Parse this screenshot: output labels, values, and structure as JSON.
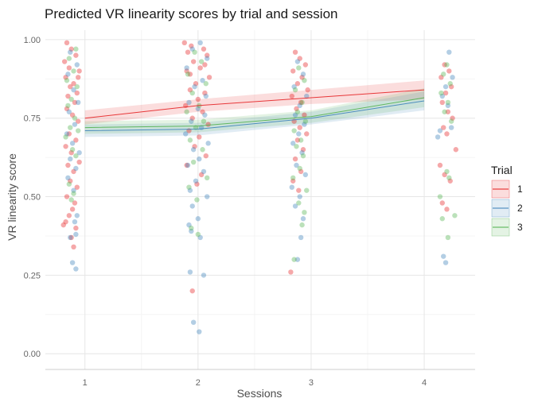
{
  "chart_data": {
    "type": "scatter",
    "title": "Predicted VR linearity scores by trial and session",
    "xlabel": "Sessions",
    "ylabel": "VR linearity score",
    "x_categories": [
      "1",
      "2",
      "3",
      "4"
    ],
    "x_range": [
      0.65,
      4.45
    ],
    "y_range": [
      -0.05,
      1.03
    ],
    "y_ticks": [
      0.0,
      0.25,
      0.5,
      0.75,
      1.0
    ],
    "y_tick_labels": [
      "0.00",
      "0.25",
      "0.50",
      "0.75",
      "1.00"
    ],
    "grid": true,
    "legend": {
      "title": "Trial",
      "placement": "right",
      "entries": [
        "1",
        "2",
        "3"
      ]
    },
    "colors": {
      "1": "#e41a1c",
      "2": "#377eb8",
      "3": "#4daf4a"
    },
    "series": [
      {
        "name": "1",
        "color": "#e41a1c",
        "fit": [
          {
            "session": 1,
            "estimate": 0.75,
            "lower": 0.73,
            "upper": 0.775
          },
          {
            "session": 2,
            "estimate": 0.79,
            "lower": 0.77,
            "upper": 0.81
          },
          {
            "session": 3,
            "estimate": 0.815,
            "lower": 0.795,
            "upper": 0.84
          },
          {
            "session": 4,
            "estimate": 0.84,
            "lower": 0.81,
            "upper": 0.87
          }
        ],
        "points": [
          {
            "x": 0.84,
            "y": 0.99
          },
          {
            "x": 0.88,
            "y": 0.97
          },
          {
            "x": 0.92,
            "y": 0.95
          },
          {
            "x": 0.82,
            "y": 0.93
          },
          {
            "x": 0.86,
            "y": 0.91
          },
          {
            "x": 0.95,
            "y": 0.9
          },
          {
            "x": 0.83,
            "y": 0.88
          },
          {
            "x": 0.9,
            "y": 0.86
          },
          {
            "x": 0.87,
            "y": 0.85
          },
          {
            "x": 0.93,
            "y": 0.83
          },
          {
            "x": 0.85,
            "y": 0.82
          },
          {
            "x": 0.91,
            "y": 0.8
          },
          {
            "x": 0.84,
            "y": 0.78
          },
          {
            "x": 0.89,
            "y": 0.76
          },
          {
            "x": 0.94,
            "y": 0.74
          },
          {
            "x": 0.86,
            "y": 0.7
          },
          {
            "x": 0.92,
            "y": 0.68
          },
          {
            "x": 0.83,
            "y": 0.66
          },
          {
            "x": 0.88,
            "y": 0.64
          },
          {
            "x": 0.95,
            "y": 0.61
          },
          {
            "x": 0.85,
            "y": 0.6
          },
          {
            "x": 0.9,
            "y": 0.58
          },
          {
            "x": 0.87,
            "y": 0.55
          },
          {
            "x": 0.93,
            "y": 0.53
          },
          {
            "x": 0.84,
            "y": 0.5
          },
          {
            "x": 0.91,
            "y": 0.48
          },
          {
            "x": 0.89,
            "y": 0.46
          },
          {
            "x": 0.86,
            "y": 0.44
          },
          {
            "x": 0.83,
            "y": 0.42
          },
          {
            "x": 0.81,
            "y": 0.41
          },
          {
            "x": 0.92,
            "y": 0.4
          },
          {
            "x": 0.88,
            "y": 0.37
          },
          {
            "x": 0.9,
            "y": 0.34
          },
          {
            "x": 0.94,
            "y": 0.88
          },
          {
            "x": 1.88,
            "y": 0.99
          },
          {
            "x": 1.94,
            "y": 0.98
          },
          {
            "x": 2.05,
            "y": 0.97
          },
          {
            "x": 1.91,
            "y": 0.96
          },
          {
            "x": 2.08,
            "y": 0.95
          },
          {
            "x": 1.96,
            "y": 0.93
          },
          {
            "x": 2.02,
            "y": 0.91
          },
          {
            "x": 1.9,
            "y": 0.9
          },
          {
            "x": 2.1,
            "y": 0.88
          },
          {
            "x": 1.98,
            "y": 0.86
          },
          {
            "x": 1.93,
            "y": 0.84
          },
          {
            "x": 2.06,
            "y": 0.83
          },
          {
            "x": 2.0,
            "y": 0.81
          },
          {
            "x": 1.89,
            "y": 0.79
          },
          {
            "x": 2.04,
            "y": 0.77
          },
          {
            "x": 1.95,
            "y": 0.75
          },
          {
            "x": 2.09,
            "y": 0.73
          },
          {
            "x": 1.92,
            "y": 0.71
          },
          {
            "x": 2.01,
            "y": 0.69
          },
          {
            "x": 1.97,
            "y": 0.66
          },
          {
            "x": 2.07,
            "y": 0.63
          },
          {
            "x": 1.9,
            "y": 0.6
          },
          {
            "x": 2.03,
            "y": 0.57
          },
          {
            "x": 1.99,
            "y": 0.54
          },
          {
            "x": 1.95,
            "y": 0.2
          },
          {
            "x": 2.06,
            "y": 0.92
          },
          {
            "x": 1.93,
            "y": 0.89
          },
          {
            "x": 2.86,
            "y": 0.96
          },
          {
            "x": 2.9,
            "y": 0.94
          },
          {
            "x": 2.95,
            "y": 0.92
          },
          {
            "x": 2.84,
            "y": 0.9
          },
          {
            "x": 2.92,
            "y": 0.88
          },
          {
            "x": 2.88,
            "y": 0.86
          },
          {
            "x": 2.97,
            "y": 0.84
          },
          {
            "x": 2.83,
            "y": 0.82
          },
          {
            "x": 2.91,
            "y": 0.8
          },
          {
            "x": 2.87,
            "y": 0.78
          },
          {
            "x": 2.94,
            "y": 0.76
          },
          {
            "x": 2.85,
            "y": 0.74
          },
          {
            "x": 2.9,
            "y": 0.72
          },
          {
            "x": 2.96,
            "y": 0.7
          },
          {
            "x": 2.88,
            "y": 0.68
          },
          {
            "x": 2.93,
            "y": 0.65
          },
          {
            "x": 2.86,
            "y": 0.62
          },
          {
            "x": 2.91,
            "y": 0.58
          },
          {
            "x": 2.84,
            "y": 0.55
          },
          {
            "x": 2.89,
            "y": 0.52
          },
          {
            "x": 2.82,
            "y": 0.26
          },
          {
            "x": 4.18,
            "y": 0.92
          },
          {
            "x": 4.22,
            "y": 0.9
          },
          {
            "x": 4.15,
            "y": 0.88
          },
          {
            "x": 4.24,
            "y": 0.85
          },
          {
            "x": 4.19,
            "y": 0.83
          },
          {
            "x": 4.16,
            "y": 0.8
          },
          {
            "x": 4.21,
            "y": 0.77
          },
          {
            "x": 4.25,
            "y": 0.75
          },
          {
            "x": 4.17,
            "y": 0.72
          },
          {
            "x": 4.2,
            "y": 0.7
          },
          {
            "x": 4.28,
            "y": 0.65
          },
          {
            "x": 4.14,
            "y": 0.6
          },
          {
            "x": 4.18,
            "y": 0.57
          },
          {
            "x": 4.23,
            "y": 0.55
          },
          {
            "x": 4.16,
            "y": 0.48
          },
          {
            "x": 4.2,
            "y": 0.46
          }
        ]
      },
      {
        "name": "2",
        "color": "#377eb8",
        "fit": [
          {
            "session": 1,
            "estimate": 0.71,
            "lower": 0.69,
            "upper": 0.73
          },
          {
            "session": 2,
            "estimate": 0.715,
            "lower": 0.695,
            "upper": 0.735
          },
          {
            "session": 3,
            "estimate": 0.75,
            "lower": 0.73,
            "upper": 0.77
          },
          {
            "session": 4,
            "estimate": 0.805,
            "lower": 0.775,
            "upper": 0.835
          }
        ],
        "points": [
          {
            "x": 0.87,
            "y": 0.96
          },
          {
            "x": 0.93,
            "y": 0.92
          },
          {
            "x": 0.85,
            "y": 0.89
          },
          {
            "x": 0.9,
            "y": 0.84
          },
          {
            "x": 0.94,
            "y": 0.8
          },
          {
            "x": 0.86,
            "y": 0.77
          },
          {
            "x": 0.91,
            "y": 0.73
          },
          {
            "x": 0.84,
            "y": 0.7
          },
          {
            "x": 0.89,
            "y": 0.67
          },
          {
            "x": 0.95,
            "y": 0.64
          },
          {
            "x": 0.87,
            "y": 0.62
          },
          {
            "x": 0.92,
            "y": 0.59
          },
          {
            "x": 0.85,
            "y": 0.56
          },
          {
            "x": 0.9,
            "y": 0.52
          },
          {
            "x": 0.93,
            "y": 0.44
          },
          {
            "x": 0.91,
            "y": 0.42
          },
          {
            "x": 0.92,
            "y": 0.38
          },
          {
            "x": 0.87,
            "y": 0.37
          },
          {
            "x": 0.89,
            "y": 0.29
          },
          {
            "x": 0.92,
            "y": 0.27
          },
          {
            "x": 2.02,
            "y": 0.99
          },
          {
            "x": 1.95,
            "y": 0.97
          },
          {
            "x": 2.08,
            "y": 0.94
          },
          {
            "x": 1.9,
            "y": 0.91
          },
          {
            "x": 2.04,
            "y": 0.87
          },
          {
            "x": 1.97,
            "y": 0.85
          },
          {
            "x": 2.07,
            "y": 0.82
          },
          {
            "x": 1.92,
            "y": 0.8
          },
          {
            "x": 2.0,
            "y": 0.78
          },
          {
            "x": 2.06,
            "y": 0.76
          },
          {
            "x": 1.94,
            "y": 0.74
          },
          {
            "x": 2.03,
            "y": 0.72
          },
          {
            "x": 1.89,
            "y": 0.7
          },
          {
            "x": 2.09,
            "y": 0.67
          },
          {
            "x": 1.96,
            "y": 0.65
          },
          {
            "x": 2.01,
            "y": 0.62
          },
          {
            "x": 1.91,
            "y": 0.6
          },
          {
            "x": 2.05,
            "y": 0.58
          },
          {
            "x": 1.98,
            "y": 0.55
          },
          {
            "x": 1.93,
            "y": 0.52
          },
          {
            "x": 2.08,
            "y": 0.5
          },
          {
            "x": 1.95,
            "y": 0.47
          },
          {
            "x": 2.0,
            "y": 0.43
          },
          {
            "x": 1.92,
            "y": 0.41
          },
          {
            "x": 1.94,
            "y": 0.39
          },
          {
            "x": 2.02,
            "y": 0.37
          },
          {
            "x": 1.93,
            "y": 0.26
          },
          {
            "x": 2.05,
            "y": 0.25
          },
          {
            "x": 1.96,
            "y": 0.1
          },
          {
            "x": 2.01,
            "y": 0.07
          },
          {
            "x": 2.88,
            "y": 0.93
          },
          {
            "x": 2.93,
            "y": 0.89
          },
          {
            "x": 2.85,
            "y": 0.85
          },
          {
            "x": 2.96,
            "y": 0.82
          },
          {
            "x": 2.9,
            "y": 0.79
          },
          {
            "x": 2.86,
            "y": 0.76
          },
          {
            "x": 2.94,
            "y": 0.73
          },
          {
            "x": 2.89,
            "y": 0.7
          },
          {
            "x": 2.84,
            "y": 0.67
          },
          {
            "x": 2.92,
            "y": 0.64
          },
          {
            "x": 2.87,
            "y": 0.6
          },
          {
            "x": 2.95,
            "y": 0.57
          },
          {
            "x": 2.83,
            "y": 0.53
          },
          {
            "x": 2.9,
            "y": 0.5
          },
          {
            "x": 2.86,
            "y": 0.47
          },
          {
            "x": 2.93,
            "y": 0.43
          },
          {
            "x": 2.91,
            "y": 0.37
          },
          {
            "x": 2.88,
            "y": 0.3
          },
          {
            "x": 4.22,
            "y": 0.96
          },
          {
            "x": 4.25,
            "y": 0.88
          },
          {
            "x": 4.19,
            "y": 0.85
          },
          {
            "x": 4.16,
            "y": 0.82
          },
          {
            "x": 4.21,
            "y": 0.79
          },
          {
            "x": 4.14,
            "y": 0.71
          },
          {
            "x": 4.12,
            "y": 0.69
          },
          {
            "x": 4.24,
            "y": 0.72
          },
          {
            "x": 4.17,
            "y": 0.31
          },
          {
            "x": 4.19,
            "y": 0.29
          }
        ]
      },
      {
        "name": "3",
        "color": "#4daf4a",
        "fit": [
          {
            "session": 1,
            "estimate": 0.72,
            "lower": 0.7,
            "upper": 0.74
          },
          {
            "session": 2,
            "estimate": 0.725,
            "lower": 0.705,
            "upper": 0.745
          },
          {
            "session": 3,
            "estimate": 0.755,
            "lower": 0.735,
            "upper": 0.775
          },
          {
            "session": 4,
            "estimate": 0.815,
            "lower": 0.785,
            "upper": 0.845
          }
        ],
        "points": [
          {
            "x": 0.92,
            "y": 0.97
          },
          {
            "x": 0.86,
            "y": 0.94
          },
          {
            "x": 0.9,
            "y": 0.9
          },
          {
            "x": 0.84,
            "y": 0.87
          },
          {
            "x": 0.93,
            "y": 0.85
          },
          {
            "x": 0.88,
            "y": 0.81
          },
          {
            "x": 0.85,
            "y": 0.79
          },
          {
            "x": 0.91,
            "y": 0.75
          },
          {
            "x": 0.87,
            "y": 0.72
          },
          {
            "x": 0.94,
            "y": 0.71
          },
          {
            "x": 0.83,
            "y": 0.69
          },
          {
            "x": 0.89,
            "y": 0.65
          },
          {
            "x": 0.92,
            "y": 0.63
          },
          {
            "x": 0.86,
            "y": 0.54
          },
          {
            "x": 0.9,
            "y": 0.51
          },
          {
            "x": 0.88,
            "y": 0.49
          },
          {
            "x": 1.97,
            "y": 0.96
          },
          {
            "x": 2.03,
            "y": 0.93
          },
          {
            "x": 1.91,
            "y": 0.89
          },
          {
            "x": 2.07,
            "y": 0.86
          },
          {
            "x": 1.95,
            "y": 0.83
          },
          {
            "x": 2.01,
            "y": 0.79
          },
          {
            "x": 1.9,
            "y": 0.77
          },
          {
            "x": 2.05,
            "y": 0.74
          },
          {
            "x": 1.98,
            "y": 0.72
          },
          {
            "x": 1.93,
            "y": 0.68
          },
          {
            "x": 2.04,
            "y": 0.65
          },
          {
            "x": 1.96,
            "y": 0.61
          },
          {
            "x": 2.08,
            "y": 0.56
          },
          {
            "x": 1.92,
            "y": 0.53
          },
          {
            "x": 1.99,
            "y": 0.49
          },
          {
            "x": 1.94,
            "y": 0.4
          },
          {
            "x": 2.0,
            "y": 0.38
          },
          {
            "x": 2.89,
            "y": 0.91
          },
          {
            "x": 2.94,
            "y": 0.87
          },
          {
            "x": 2.86,
            "y": 0.84
          },
          {
            "x": 2.92,
            "y": 0.8
          },
          {
            "x": 2.88,
            "y": 0.77
          },
          {
            "x": 2.95,
            "y": 0.74
          },
          {
            "x": 2.85,
            "y": 0.71
          },
          {
            "x": 2.91,
            "y": 0.68
          },
          {
            "x": 2.87,
            "y": 0.66
          },
          {
            "x": 2.93,
            "y": 0.63
          },
          {
            "x": 2.9,
            "y": 0.59
          },
          {
            "x": 2.84,
            "y": 0.56
          },
          {
            "x": 2.96,
            "y": 0.52
          },
          {
            "x": 2.89,
            "y": 0.48
          },
          {
            "x": 2.94,
            "y": 0.45
          },
          {
            "x": 2.92,
            "y": 0.41
          },
          {
            "x": 2.85,
            "y": 0.3
          },
          {
            "x": 4.2,
            "y": 0.92
          },
          {
            "x": 4.17,
            "y": 0.89
          },
          {
            "x": 4.23,
            "y": 0.86
          },
          {
            "x": 4.15,
            "y": 0.83
          },
          {
            "x": 4.21,
            "y": 0.8
          },
          {
            "x": 4.18,
            "y": 0.77
          },
          {
            "x": 4.24,
            "y": 0.74
          },
          {
            "x": 4.2,
            "y": 0.58
          },
          {
            "x": 4.22,
            "y": 0.56
          },
          {
            "x": 4.14,
            "y": 0.5
          },
          {
            "x": 4.27,
            "y": 0.44
          },
          {
            "x": 4.16,
            "y": 0.43
          },
          {
            "x": 4.21,
            "y": 0.37
          }
        ]
      }
    ]
  }
}
